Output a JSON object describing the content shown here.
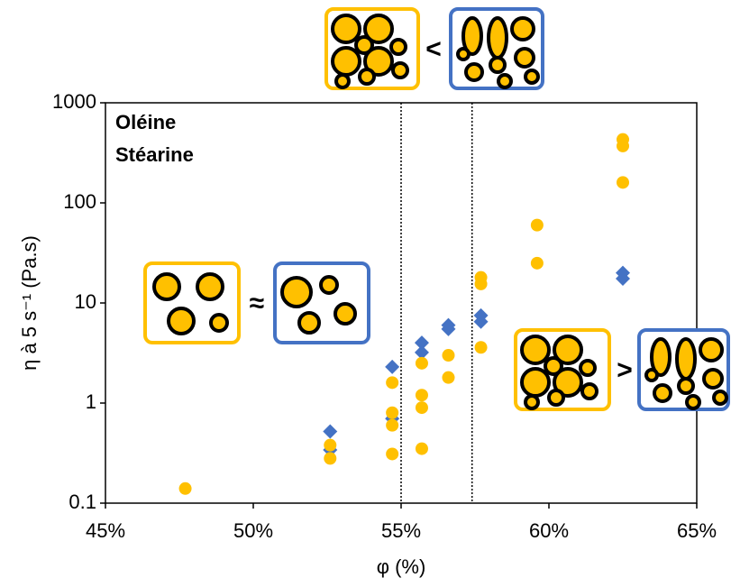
{
  "chart_data": {
    "type": "scatter",
    "x_label": "φ (%)",
    "y_label": "η à 5 s⁻¹ (Pa.s)",
    "log_y": true,
    "xlim": [
      45,
      65
    ],
    "xticks": [
      {
        "value": 45,
        "label": "45%"
      },
      {
        "value": 50,
        "label": "50%"
      },
      {
        "value": 55,
        "label": "55%"
      },
      {
        "value": 60,
        "label": "60%"
      },
      {
        "value": 65,
        "label": "65%"
      }
    ],
    "ylim": [
      0.1,
      1000
    ],
    "yticks": [
      0.1,
      1,
      10,
      100,
      1000
    ],
    "vlines": [
      55,
      57.4
    ],
    "legend": "top-left",
    "comparisons": [
      "<",
      "≈",
      ">"
    ],
    "series": [
      {
        "name": "Oléine",
        "color": "#4472c4",
        "marker": "diamond",
        "x": [
          52.6,
          52.6,
          54.7,
          54.7,
          55.7,
          55.7,
          56.6,
          56.6,
          57.7,
          57.7,
          62.5,
          62.5
        ],
        "values": [
          0.52,
          0.34,
          2.3,
          0.7,
          4.0,
          3.2,
          6.0,
          5.5,
          7.5,
          6.5,
          20,
          17.5
        ]
      },
      {
        "name": "Stéarine",
        "color": "#ffc000",
        "marker": "circle",
        "x": [
          47.7,
          52.6,
          52.6,
          54.7,
          54.7,
          54.7,
          54.7,
          55.7,
          55.7,
          55.7,
          55.7,
          56.6,
          56.6,
          57.7,
          57.7,
          57.7,
          59.6,
          59.6,
          62.5,
          62.5,
          62.5
        ],
        "values": [
          0.14,
          0.38,
          0.28,
          1.6,
          0.8,
          0.6,
          0.31,
          2.5,
          1.2,
          0.9,
          0.35,
          3.0,
          1.8,
          18,
          15.5,
          3.6,
          60,
          25,
          430,
          370,
          160
        ]
      }
    ]
  }
}
